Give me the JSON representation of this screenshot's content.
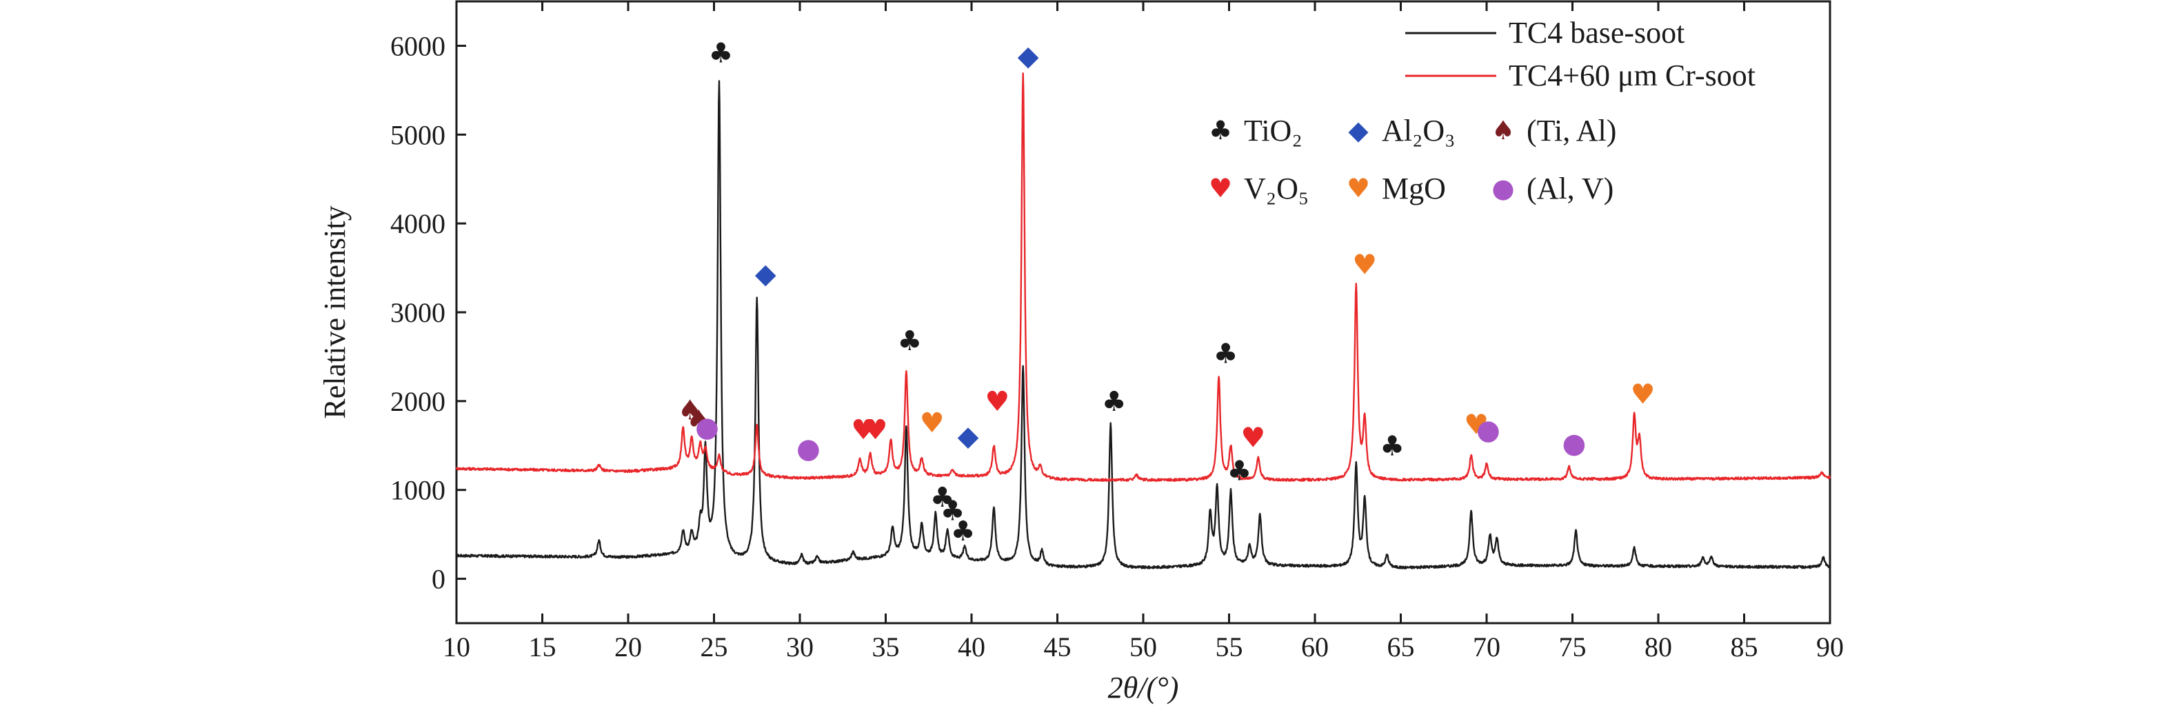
{
  "chart_data": {
    "type": "line",
    "xlabel": "2θ/(°)",
    "ylabel": "Relative intensity",
    "xlim": [
      10,
      90
    ],
    "ylim": [
      -500,
      6500
    ],
    "xticks": [
      10,
      15,
      20,
      25,
      30,
      35,
      40,
      45,
      50,
      55,
      60,
      65,
      70,
      75,
      80,
      85,
      90
    ],
    "yticks": [
      0,
      1000,
      2000,
      3000,
      4000,
      5000,
      6000
    ],
    "grid": false,
    "legend_position": "top-right",
    "series": [
      {
        "name": "TC4 base-soot",
        "color": "#1a1a1a",
        "baseline": [
          [
            10,
            260
          ],
          [
            20,
            240
          ],
          [
            24,
            280
          ],
          [
            26,
            200
          ],
          [
            30,
            150
          ],
          [
            36,
            260
          ],
          [
            40,
            200
          ],
          [
            45,
            130
          ],
          [
            50,
            120
          ],
          [
            55,
            150
          ],
          [
            60,
            140
          ],
          [
            65,
            120
          ],
          [
            70,
            150
          ],
          [
            80,
            140
          ],
          [
            90,
            130
          ]
        ],
        "peaks": [
          [
            18.3,
            430
          ],
          [
            23.2,
            520
          ],
          [
            23.7,
            480
          ],
          [
            24.2,
            550
          ],
          [
            24.5,
            1400
          ],
          [
            25.3,
            5580
          ],
          [
            27.5,
            3150
          ],
          [
            30.1,
            260
          ],
          [
            31.0,
            240
          ],
          [
            33.1,
            300
          ],
          [
            35.4,
            560
          ],
          [
            36.2,
            1700
          ],
          [
            37.1,
            600
          ],
          [
            37.9,
            720
          ],
          [
            38.6,
            540
          ],
          [
            39.6,
            350
          ],
          [
            41.3,
            800
          ],
          [
            43.0,
            2400
          ],
          [
            44.1,
            300
          ],
          [
            48.1,
            1740
          ],
          [
            53.9,
            720
          ],
          [
            54.3,
            1000
          ],
          [
            55.1,
            980
          ],
          [
            56.2,
            360
          ],
          [
            56.8,
            720
          ],
          [
            62.4,
            1270
          ],
          [
            62.9,
            880
          ],
          [
            64.2,
            260
          ],
          [
            69.1,
            760
          ],
          [
            70.2,
            480
          ],
          [
            70.6,
            440
          ],
          [
            75.2,
            540
          ],
          [
            78.6,
            350
          ],
          [
            82.6,
            240
          ],
          [
            83.1,
            240
          ],
          [
            89.6,
            240
          ]
        ]
      },
      {
        "name": "TC4+60 μm Cr-soot",
        "color": "#e8262a",
        "baseline": [
          [
            10,
            1240
          ],
          [
            20,
            1210
          ],
          [
            24,
            1250
          ],
          [
            26,
            1170
          ],
          [
            30,
            1130
          ],
          [
            35,
            1160
          ],
          [
            40,
            1150
          ],
          [
            45,
            1110
          ],
          [
            50,
            1110
          ],
          [
            55,
            1110
          ],
          [
            60,
            1110
          ],
          [
            65,
            1110
          ],
          [
            70,
            1120
          ],
          [
            80,
            1120
          ],
          [
            90,
            1140
          ]
        ],
        "peaks": [
          [
            18.3,
            1280
          ],
          [
            23.2,
            1690
          ],
          [
            23.7,
            1560
          ],
          [
            24.2,
            1500
          ],
          [
            24.5,
            1450
          ],
          [
            25.3,
            1380
          ],
          [
            27.5,
            1730
          ],
          [
            33.5,
            1350
          ],
          [
            34.1,
            1400
          ],
          [
            35.3,
            1550
          ],
          [
            36.2,
            2330
          ],
          [
            37.1,
            1350
          ],
          [
            38.9,
            1220
          ],
          [
            41.3,
            1480
          ],
          [
            43.0,
            5700
          ],
          [
            44.0,
            1230
          ],
          [
            49.6,
            1170
          ],
          [
            54.4,
            2270
          ],
          [
            55.1,
            1480
          ],
          [
            56.7,
            1370
          ],
          [
            62.4,
            3290
          ],
          [
            62.9,
            1760
          ],
          [
            69.1,
            1390
          ],
          [
            70.0,
            1290
          ],
          [
            74.8,
            1260
          ],
          [
            78.6,
            1820
          ],
          [
            78.9,
            1560
          ],
          [
            89.5,
            1200
          ]
        ]
      }
    ],
    "phase_key": [
      {
        "symbol": "♣",
        "label": "TiO₂",
        "color": "#1a1a1a"
      },
      {
        "symbol": "◆",
        "label": "Al₂O₃",
        "color": "#2a4fb8"
      },
      {
        "symbol": "♠",
        "label": "(Ti, Al)",
        "color": "#7a1e22"
      },
      {
        "symbol": "♥",
        "label": "V₂O₅",
        "color": "#e8262a"
      },
      {
        "symbol": "♥",
        "label": "MgO",
        "color": "#f07a22"
      },
      {
        "symbol": "●",
        "label": "(Al, V)",
        "color": "#a855c8"
      }
    ],
    "annotations": [
      {
        "symbol": "♣",
        "color": "#1a1a1a",
        "x": 25.4,
        "y": 5920
      },
      {
        "symbol": "◆",
        "color": "#2a4fb8",
        "x": 28.0,
        "y": 3440
      },
      {
        "symbol": "♣",
        "color": "#1a1a1a",
        "x": 36.4,
        "y": 2680
      },
      {
        "symbol": "◆",
        "color": "#2a4fb8",
        "x": 43.3,
        "y": 5890
      },
      {
        "symbol": "♣",
        "color": "#1a1a1a",
        "x": 48.3,
        "y": 2000
      },
      {
        "symbol": "♣",
        "color": "#1a1a1a",
        "x": 54.8,
        "y": 2540
      },
      {
        "symbol": "♥",
        "color": "#f07a22",
        "x": 62.9,
        "y": 3540
      },
      {
        "symbol": "♠",
        "color": "#7a1e22",
        "x": 23.6,
        "y": 1900
      },
      {
        "symbol": "♠",
        "color": "#7a1e22",
        "x": 24.1,
        "y": 1790
      },
      {
        "symbol": "●",
        "color": "#a855c8",
        "x": 24.6,
        "y": 1710
      },
      {
        "symbol": "●",
        "color": "#a855c8",
        "x": 30.5,
        "y": 1470
      },
      {
        "symbol": "♥",
        "color": "#e8262a",
        "x": 33.7,
        "y": 1680
      },
      {
        "symbol": "♥",
        "color": "#e8262a",
        "x": 34.4,
        "y": 1680
      },
      {
        "symbol": "♥",
        "color": "#f07a22",
        "x": 37.7,
        "y": 1760
      },
      {
        "symbol": "◆",
        "color": "#2a4fb8",
        "x": 39.8,
        "y": 1610
      },
      {
        "symbol": "♥",
        "color": "#e8262a",
        "x": 41.5,
        "y": 2000
      },
      {
        "symbol": "♥",
        "color": "#e8262a",
        "x": 56.4,
        "y": 1590
      },
      {
        "symbol": "♣",
        "color": "#1a1a1a",
        "x": 55.6,
        "y": 1220
      },
      {
        "symbol": "♣",
        "color": "#1a1a1a",
        "x": 64.5,
        "y": 1500
      },
      {
        "symbol": "♥",
        "color": "#f07a22",
        "x": 69.4,
        "y": 1740
      },
      {
        "symbol": "●",
        "color": "#a855c8",
        "x": 70.1,
        "y": 1680
      },
      {
        "symbol": "●",
        "color": "#a855c8",
        "x": 75.1,
        "y": 1530
      },
      {
        "symbol": "♥",
        "color": "#f07a22",
        "x": 79.1,
        "y": 2080
      },
      {
        "symbol": "♣",
        "color": "#1a1a1a",
        "x": 38.3,
        "y": 920
      },
      {
        "symbol": "♣",
        "color": "#1a1a1a",
        "x": 38.9,
        "y": 770
      },
      {
        "symbol": "♣",
        "color": "#1a1a1a",
        "x": 39.5,
        "y": 540
      }
    ]
  }
}
